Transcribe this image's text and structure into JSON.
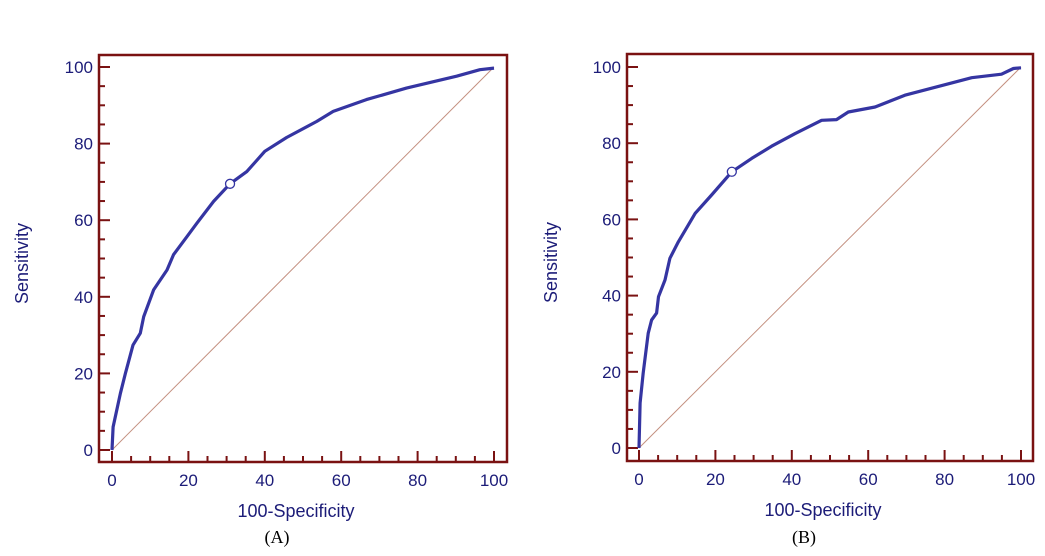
{
  "colors": {
    "frame": "#7a1212",
    "curve": "#3535a2",
    "diagonal": "#c49080",
    "text": "#1c1c78",
    "marker_fill": "#ffffff"
  },
  "chart_data": [
    {
      "type": "line",
      "panel_label": "(A)",
      "xlabel": "100-Specificity",
      "ylabel": "Sensitivity",
      "xlim": [
        0,
        100
      ],
      "ylim": [
        0,
        100
      ],
      "xticks": [
        0,
        20,
        40,
        60,
        80,
        100
      ],
      "yticks": [
        0,
        20,
        40,
        60,
        80,
        100
      ],
      "minor_tick_step": 5,
      "grid": false,
      "series": [
        {
          "role": "roc-curve",
          "x": [
            0,
            0.3,
            2.2,
            3.5,
            5.5,
            7.4,
            8.3,
            10.9,
            14.4,
            16.1,
            19.6,
            22.2,
            26.6,
            30.9,
            35.3,
            40,
            45.7,
            53.6,
            57.9,
            66.6,
            77.1,
            90.2,
            96.3,
            100
          ],
          "y": [
            0,
            6,
            14.8,
            20,
            27.4,
            30.5,
            34.8,
            41.8,
            47,
            51,
            55.7,
            59.2,
            64.9,
            69.5,
            72.7,
            78,
            81.6,
            85.8,
            88.4,
            91.5,
            94.5,
            97.6,
            99.3,
            99.7
          ]
        },
        {
          "role": "reference-diagonal",
          "x": [
            0,
            100
          ],
          "y": [
            0,
            100
          ]
        }
      ],
      "marker": {
        "x": 30.9,
        "y": 69.5
      }
    },
    {
      "type": "line",
      "panel_label": "(B)",
      "xlabel": "100-Specificity",
      "ylabel": "Sensitivity",
      "xlim": [
        0,
        100
      ],
      "ylim": [
        0,
        100
      ],
      "xticks": [
        0,
        20,
        40,
        60,
        80,
        100
      ],
      "yticks": [
        0,
        20,
        40,
        60,
        80,
        100
      ],
      "minor_tick_step": 5,
      "grid": false,
      "series": [
        {
          "role": "roc-curve",
          "x": [
            0,
            0.3,
            1.1,
            2.4,
            3.3,
            4.6,
            5.1,
            6.8,
            8.1,
            10.3,
            14.7,
            19,
            24.3,
            29.5,
            34.7,
            40.8,
            47.8,
            51.7,
            54.8,
            61.8,
            69.6,
            81,
            87.1,
            94.9,
            98,
            100
          ],
          "y": [
            0,
            11.8,
            19.7,
            30.1,
            33.6,
            35.4,
            39.7,
            44.1,
            49.8,
            54.1,
            61.6,
            66.4,
            72.5,
            76,
            79.2,
            82.5,
            86,
            86.2,
            88.2,
            89.5,
            92.6,
            95.6,
            97.2,
            98.1,
            99.6,
            99.8
          ]
        },
        {
          "role": "reference-diagonal",
          "x": [
            0,
            100
          ],
          "y": [
            0,
            100
          ]
        }
      ],
      "marker": {
        "x": 24.3,
        "y": 72.5
      }
    }
  ]
}
